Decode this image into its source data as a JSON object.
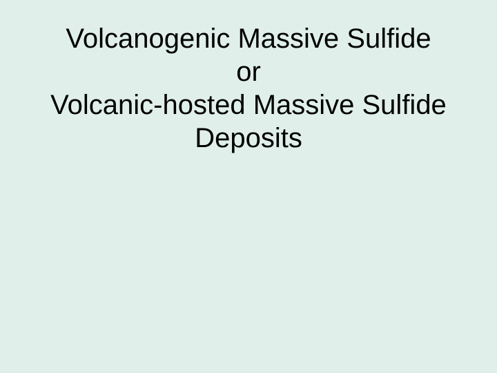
{
  "slide": {
    "background_color": "#e0efe9",
    "text_color": "#000000",
    "font_family": "Arial",
    "font_size_pt": 40,
    "font_weight": "normal",
    "title_lines": [
      "Volcanogenic Massive Sulfide",
      "or",
      "Volcanic-hosted Massive Sulfide",
      "Deposits"
    ]
  }
}
